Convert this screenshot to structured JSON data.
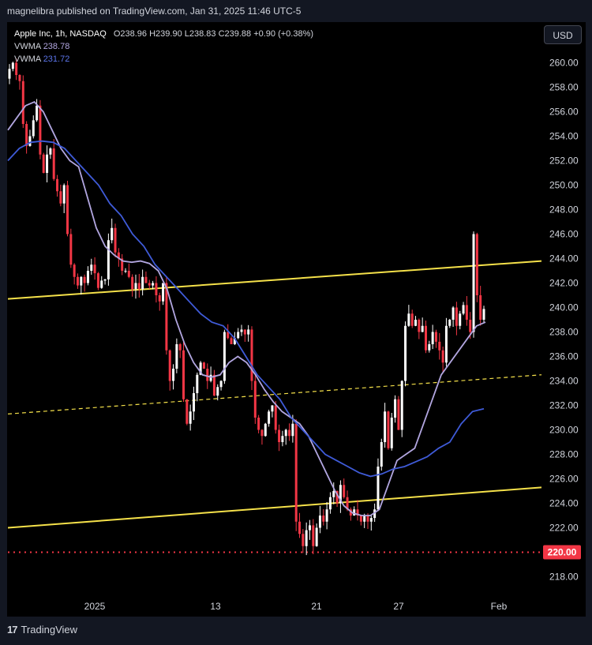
{
  "header": {
    "publisher": "magnelibra published on TradingView.com, Jan 31, 2025 11:46 UTC-5"
  },
  "legend": {
    "symbol_line": "Apple Inc, 1h, NASDAQ",
    "ohlc": "O238.96  H239.90  L238.83  C239.88  +0.90 (+0.38%)",
    "vwma1_label": "VWMA",
    "vwma1_value": "238.78",
    "vwma2_label": "VWMA",
    "vwma2_value": "231.72"
  },
  "currency_button": "USD",
  "footer": {
    "brand": "TradingView",
    "logo": "17"
  },
  "colors": {
    "up": "#ffffff",
    "down": "#f23645",
    "vwma_fast": "#b2a6e0",
    "vwma_slow": "#3f5bd8",
    "channel": "#f5e14a",
    "support_dotted": "#f23645",
    "price_tag": "#f23645"
  },
  "chart_data": {
    "type": "candlestick",
    "title": "Apple Inc, 1h, NASDAQ",
    "ylim": [
      216.5,
      262.0
    ],
    "y_ticks": [
      218,
      220,
      222,
      224,
      226,
      228,
      230,
      232,
      234,
      236,
      238,
      240,
      242,
      244,
      246,
      248,
      250,
      252,
      254,
      256,
      258,
      260
    ],
    "x_labels": [
      "2025",
      "13",
      "21",
      "27",
      "Feb"
    ],
    "price_tag": "220.00",
    "ohlc_path": [
      259.5,
      260.0,
      259.0,
      258.5,
      255.0,
      253.2,
      254.0,
      255.3,
      256.5,
      252.5,
      251.0,
      252.5,
      253.0,
      250.5,
      249.5,
      248.5,
      250.0,
      246.0,
      243.5,
      242.5,
      241.8,
      242.5,
      242.0,
      243.0,
      243.5,
      242.8,
      241.6,
      242.2,
      242.3,
      245.5,
      246.5,
      244.5,
      244.0,
      243.0,
      243.0,
      242.5,
      241.5,
      242.0,
      241.5,
      242.5,
      242.0,
      241.8,
      242.0,
      241.0,
      240.5,
      242.0,
      236.5,
      234.0,
      235.0,
      237.0,
      236.5,
      232.5,
      230.5,
      231.5,
      233.0,
      234.5,
      235.5,
      235.0,
      234.0,
      234.5,
      232.8,
      233.5,
      234.0,
      238.0,
      237.5,
      237.0,
      237.5,
      238.0,
      238.2,
      237.8,
      238.2,
      234.0,
      231.0,
      230.0,
      229.5,
      230.5,
      231.5,
      232.0,
      230.0,
      229.0,
      229.5,
      230.0,
      229.5,
      230.5,
      222.5,
      221.5,
      220.5,
      221.8,
      222.2,
      220.5,
      222.0,
      223.0,
      222.5,
      223.5,
      224.5,
      225.0,
      224.0,
      225.5,
      224.5,
      223.5,
      223.0,
      223.5,
      223.0,
      222.5,
      223.0,
      222.5,
      222.8,
      223.5,
      227.0,
      229.0,
      231.5,
      228.5,
      231.0,
      232.5,
      230.0,
      234.0,
      238.5,
      239.5,
      238.5,
      239.0,
      238.0,
      238.5,
      236.5,
      237.0,
      238.0,
      237.2,
      236.5,
      235.5,
      238.5,
      239.0,
      240.0,
      238.5,
      239.5,
      240.2,
      239.0,
      238.0,
      246.0,
      241.0,
      239.0,
      239.88
    ],
    "vwma_fast": [
      254.5,
      255.5,
      256.5,
      256.8,
      256.0,
      254.5,
      253.0,
      252.0,
      251.5,
      249.0,
      246.5,
      245.0,
      244.3,
      243.8,
      243.7,
      243.8,
      243.6,
      243.0,
      241.5,
      239.0,
      237.0,
      235.5,
      234.5,
      234.3,
      234.5,
      235.5,
      236.0,
      235.5,
      234.5,
      233.3,
      232.3,
      231.5,
      231.0,
      230.5,
      229.5,
      228.0,
      226.5,
      225.0,
      223.8,
      223.2,
      223.0,
      223.0,
      223.5,
      225.5,
      227.5,
      228.0,
      228.5,
      230.5,
      232.5,
      234.5,
      235.5,
      236.5,
      237.5,
      238.5,
      238.8
    ],
    "vwma_slow": [
      252.0,
      253.0,
      253.5,
      253.6,
      253.5,
      253.0,
      252.0,
      251.0,
      250.0,
      248.5,
      247.5,
      246.0,
      245.0,
      243.5,
      242.5,
      241.5,
      240.5,
      239.5,
      238.8,
      238.5,
      237.5,
      236.0,
      234.5,
      233.5,
      232.5,
      231.0,
      230.0,
      229.0,
      228.0,
      227.5,
      227.0,
      226.5,
      226.2,
      226.4,
      226.8,
      227.0,
      227.4,
      227.8,
      228.5,
      229.0,
      230.5,
      231.5,
      231.72
    ],
    "channel_upper": {
      "start": 240.7,
      "end": 243.8
    },
    "channel_mid": {
      "start": 231.3,
      "end": 234.5
    },
    "channel_lower": {
      "start": 222.0,
      "end": 225.3
    },
    "support_level": 220.0
  }
}
